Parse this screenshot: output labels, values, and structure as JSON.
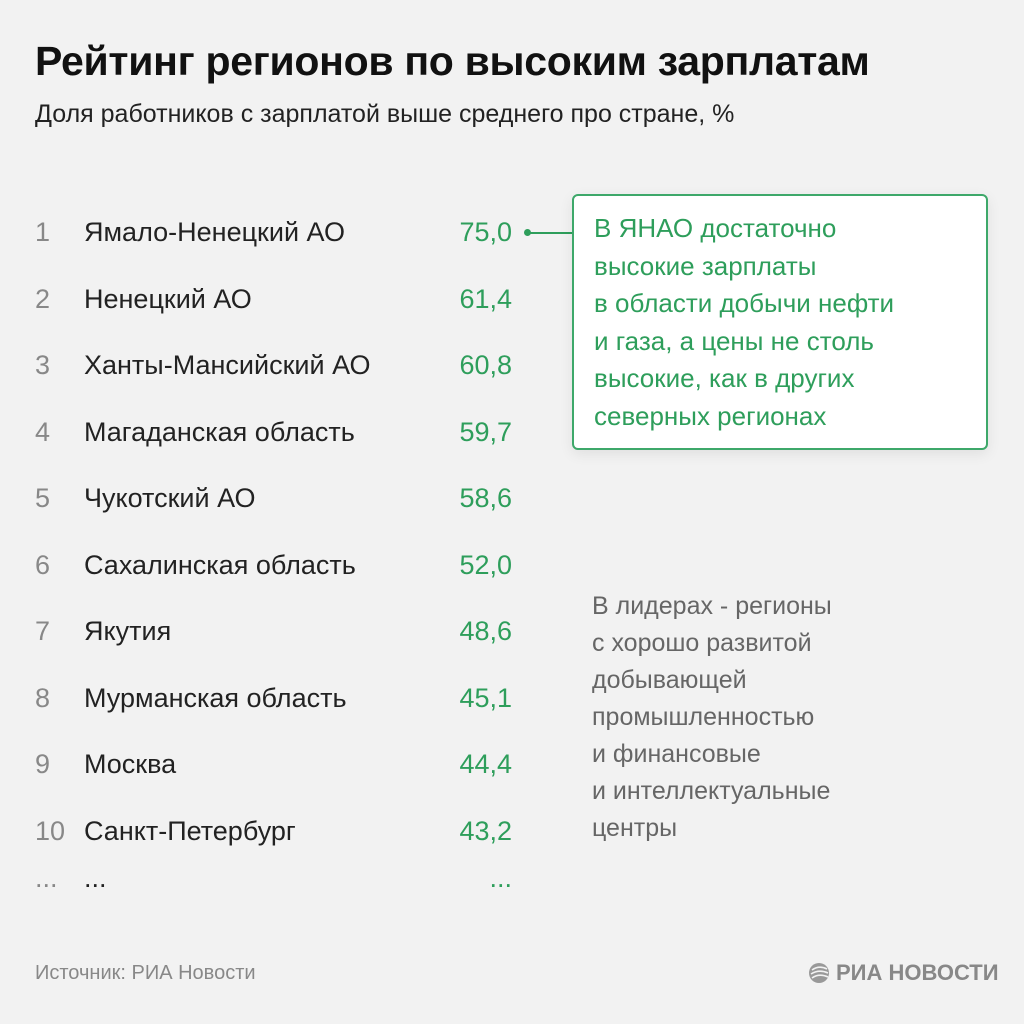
{
  "title": "Рейтинг регионов по высоким зарплатам",
  "subtitle": "Доля работников с зарплатой выше среднего про стране, %",
  "accent_color": "#2e9e5b",
  "chart_data": {
    "type": "table",
    "columns": [
      "rank",
      "region",
      "value"
    ],
    "rows": [
      {
        "rank": "1",
        "region": "Ямало-Ненецкий АО",
        "value": "75,0"
      },
      {
        "rank": "2",
        "region": "Ненецкий АО",
        "value": "61,4"
      },
      {
        "rank": "3",
        "region": "Ханты-Мансийский АО",
        "value": "60,8"
      },
      {
        "rank": "4",
        "region": "Магаданская область",
        "value": "59,7"
      },
      {
        "rank": "5",
        "region": "Чукотский АО",
        "value": "58,6"
      },
      {
        "rank": "6",
        "region": "Сахалинская область",
        "value": "52,0"
      },
      {
        "rank": "7",
        "region": "Якутия",
        "value": "48,6"
      },
      {
        "rank": "8",
        "region": "Мурманская область",
        "value": "45,1"
      },
      {
        "rank": "9",
        "region": "Москва",
        "value": "44,4"
      },
      {
        "rank": "10",
        "region": "Санкт-Петербург",
        "value": "43,2"
      },
      {
        "rank": "...",
        "region": "...",
        "value": "..."
      }
    ]
  },
  "callout": {
    "lines": [
      "В ЯНАО достаточно",
      "высокие зарплаты",
      "в области добычи нефти",
      "и газа, а цены не столь",
      "высокие, как в других",
      "северных регионах"
    ]
  },
  "side_note": {
    "lines": [
      "В лидерах - регионы",
      "с хорошо развитой",
      "добывающей",
      "промышленностью",
      "и финансовые",
      "и интеллектуальные",
      "центры"
    ]
  },
  "source": "Источник: РИА Новости",
  "logo": "РИА НОВОСТИ"
}
